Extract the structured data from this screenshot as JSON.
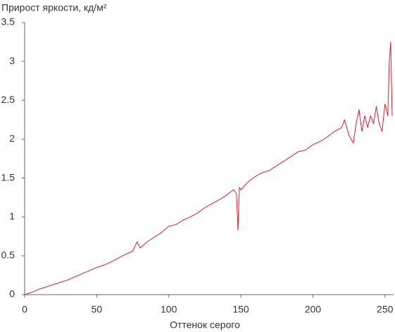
{
  "chart_data": {
    "type": "line",
    "y_label": "Прирост яркости, кд/м²",
    "x_label": "Оттенок серого",
    "x": [
      0,
      5,
      10,
      15,
      20,
      25,
      30,
      35,
      40,
      45,
      50,
      55,
      60,
      65,
      70,
      75,
      78,
      80,
      85,
      90,
      95,
      100,
      105,
      110,
      115,
      120,
      125,
      130,
      135,
      140,
      145,
      147,
      148,
      149,
      150,
      155,
      160,
      165,
      170,
      175,
      180,
      185,
      190,
      195,
      200,
      205,
      210,
      215,
      220,
      222,
      225,
      228,
      230,
      232,
      234,
      236,
      238,
      240,
      242,
      244,
      246,
      248,
      250,
      252,
      253,
      254,
      255
    ],
    "series": [
      {
        "color": "#d81e30",
        "values": [
          0,
          0.03,
          0.07,
          0.1,
          0.13,
          0.16,
          0.19,
          0.23,
          0.27,
          0.31,
          0.35,
          0.38,
          0.42,
          0.47,
          0.52,
          0.56,
          0.68,
          0.6,
          0.68,
          0.74,
          0.8,
          0.88,
          0.9,
          0.96,
          1.0,
          1.05,
          1.12,
          1.17,
          1.22,
          1.28,
          1.35,
          1.3,
          0.83,
          1.38,
          1.35,
          1.45,
          1.52,
          1.57,
          1.6,
          1.66,
          1.72,
          1.78,
          1.84,
          1.86,
          1.93,
          1.97,
          2.03,
          2.1,
          2.15,
          2.25,
          2.05,
          1.95,
          2.2,
          2.38,
          2.1,
          2.3,
          2.15,
          2.3,
          2.2,
          2.42,
          2.2,
          2.1,
          2.45,
          2.3,
          3.0,
          3.25,
          2.3
        ]
      }
    ],
    "xlim": [
      0,
      256
    ],
    "xticks": [
      0,
      50,
      100,
      150,
      200,
      250
    ],
    "ylim": [
      0,
      3.5
    ],
    "yticks": [
      0,
      0.5,
      1,
      1.5,
      2,
      2.5,
      3,
      3.5
    ],
    "grid": false
  }
}
